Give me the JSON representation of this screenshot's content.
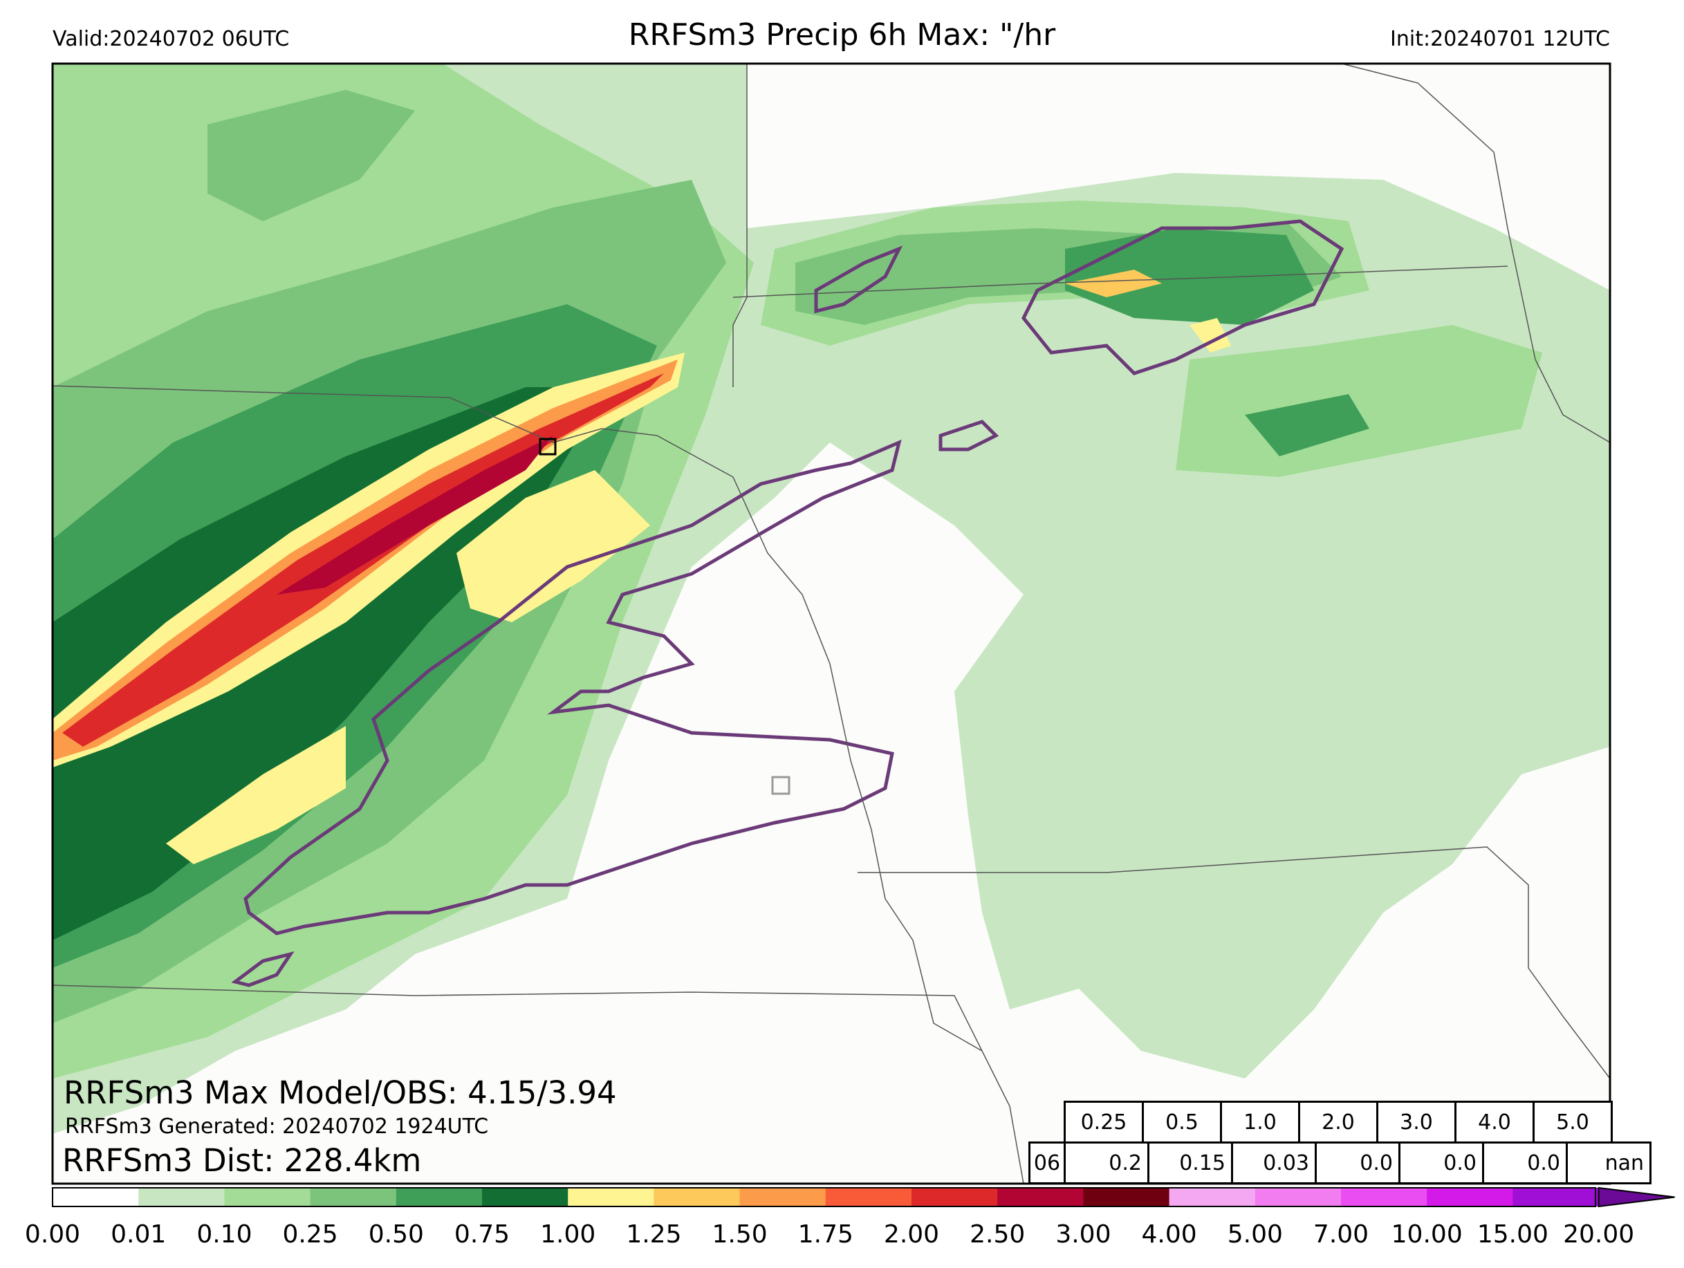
{
  "header": {
    "valid": "Valid:20240702 06UTC",
    "title": "RRFSm3 Precip 6h Max: \"/hr",
    "init": "Init:20240701 12UTC"
  },
  "overlay": {
    "max_line": "RRFSm3 Max Model/OBS: 4.15/3.94",
    "generated_line": "RRFSm3 Generated: 20240702 1924UTC",
    "dist_line": "RRFSm3 Dist: 228.4km"
  },
  "stats_table": {
    "thresholds": [
      "0.25",
      "0.5",
      "1.0",
      "2.0",
      "3.0",
      "4.0",
      "5.0"
    ],
    "hour": "06",
    "values": [
      "0.2",
      "0.15",
      "0.03",
      "0.0",
      "0.0",
      "0.0",
      "nan"
    ]
  },
  "colorbar": {
    "ticks": [
      "0.00",
      "0.01",
      "0.10",
      "0.25",
      "0.50",
      "0.75",
      "1.00",
      "1.25",
      "1.50",
      "1.75",
      "2.00",
      "2.50",
      "3.00",
      "4.00",
      "5.00",
      "7.00",
      "10.00",
      "15.00",
      "20.00"
    ],
    "colors": [
      "#ffffff",
      "#c9e6c3",
      "#a3dc97",
      "#7cc47c",
      "#3f9f58",
      "#126e33",
      "#fef592",
      "#fdc95a",
      "#fc9b4a",
      "#f95a38",
      "#dd2929",
      "#b20534",
      "#6e0010",
      "#f5a8f2",
      "#f27df0",
      "#ea4df2",
      "#d41ae8",
      "#9f0fd6"
    ],
    "extend_color": "#6a0a96"
  },
  "map_colors": {
    "background": "#fcfcfa",
    "outline_purple": "#6b3a78",
    "state_line": "#555555"
  }
}
